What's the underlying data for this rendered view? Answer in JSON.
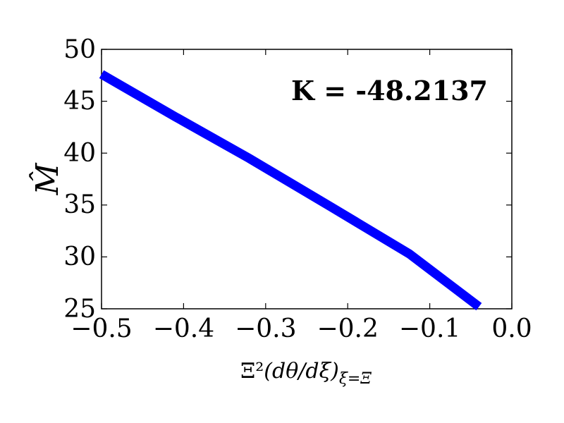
{
  "chart_data": {
    "type": "line",
    "title": "",
    "xlabel": "Ξ²(dθ/dξ)ξ=Ξ",
    "ylabel": "M̂",
    "xlim": [
      -0.5,
      0.0
    ],
    "ylim": [
      25,
      50
    ],
    "x_ticks": [
      "−0.5",
      "−0.4",
      "−0.3",
      "−0.2",
      "−0.1",
      "0.0"
    ],
    "y_ticks": [
      "25",
      "30",
      "35",
      "40",
      "45",
      "50"
    ],
    "annotation": "K = -48.2137",
    "grid": false,
    "series": [
      {
        "color": "#0000ff",
        "x": [
          -0.5,
          -0.41,
          -0.32,
          -0.22,
          -0.125,
          -0.04
        ],
        "y": [
          47.6,
          43.5,
          39.5,
          34.8,
          30.3,
          25.2
        ]
      }
    ]
  }
}
